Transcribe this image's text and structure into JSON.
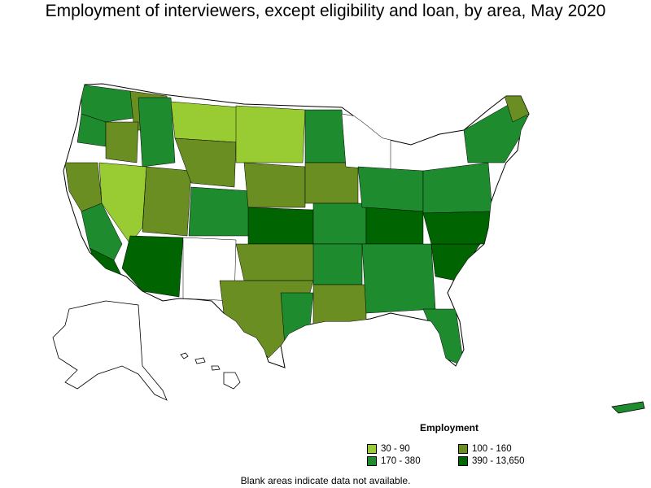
{
  "title": "Employment of interviewers, except eligibility and loan, by area, May 2020",
  "legend": {
    "title": "Employment",
    "items": [
      {
        "label": "30 - 90",
        "color": "#99cc33"
      },
      {
        "label": "100 - 160",
        "color": "#6b8e23"
      },
      {
        "label": "170 - 380",
        "color": "#1e8c2e"
      },
      {
        "label": "390 - 13,650",
        "color": "#006400"
      }
    ]
  },
  "footnote": "Blank areas indicate data not available.",
  "colors": {
    "no_data": "#ffffff",
    "border": "#000000"
  }
}
